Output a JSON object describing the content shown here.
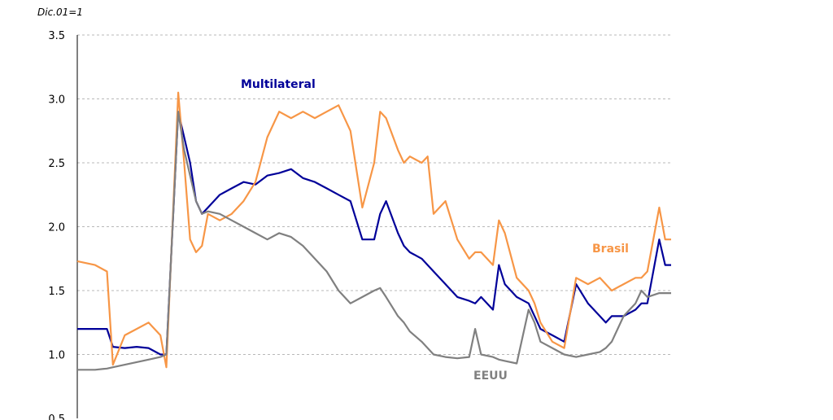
{
  "chart_data": {
    "type": "line",
    "unit_label": "Dic.01=1",
    "ylim": [
      0.5,
      3.5
    ],
    "yticks": [
      "3.5",
      "3.0",
      "2.5",
      "2.0",
      "1.5",
      "1.0",
      "0.5"
    ],
    "grid": true,
    "x_index_range": [
      0,
      100
    ],
    "x": [
      0,
      3,
      5,
      6,
      8,
      10,
      12,
      14,
      15,
      17,
      18,
      19,
      20,
      21,
      22,
      24,
      26,
      28,
      30,
      32,
      34,
      36,
      38,
      40,
      42,
      44,
      46,
      48,
      50,
      51,
      52,
      54,
      55,
      56,
      58,
      59,
      60,
      62,
      64,
      66,
      67,
      68,
      70,
      71,
      72,
      74,
      76,
      77,
      78,
      80,
      82,
      84,
      86,
      88,
      89,
      90,
      92,
      94,
      95,
      96,
      98,
      99,
      100
    ],
    "series": [
      {
        "name": "Multilateral",
        "color": "#000099",
        "values": [
          1.2,
          1.2,
          1.2,
          1.06,
          1.05,
          1.06,
          1.05,
          1.0,
          1.0,
          2.9,
          2.7,
          2.5,
          2.2,
          2.1,
          2.15,
          2.25,
          2.3,
          2.35,
          2.33,
          2.4,
          2.42,
          2.45,
          2.38,
          2.35,
          2.3,
          2.25,
          2.2,
          1.9,
          1.9,
          2.1,
          2.2,
          1.95,
          1.85,
          1.8,
          1.75,
          1.7,
          1.65,
          1.55,
          1.45,
          1.42,
          1.4,
          1.45,
          1.35,
          1.7,
          1.55,
          1.45,
          1.4,
          1.3,
          1.2,
          1.15,
          1.1,
          1.55,
          1.4,
          1.3,
          1.25,
          1.3,
          1.3,
          1.35,
          1.4,
          1.4,
          1.9,
          1.7,
          1.7
        ]
      },
      {
        "name": "Brasil",
        "color": "#F79646",
        "values": [
          1.73,
          1.7,
          1.65,
          0.92,
          1.15,
          1.2,
          1.25,
          1.15,
          0.9,
          3.05,
          2.5,
          1.9,
          1.8,
          1.85,
          2.1,
          2.05,
          2.1,
          2.2,
          2.35,
          2.7,
          2.9,
          2.85,
          2.9,
          2.85,
          2.9,
          2.95,
          2.75,
          2.15,
          2.5,
          2.9,
          2.85,
          2.6,
          2.5,
          2.55,
          2.5,
          2.55,
          2.1,
          2.2,
          1.9,
          1.75,
          1.8,
          1.8,
          1.7,
          2.05,
          1.95,
          1.6,
          1.5,
          1.4,
          1.25,
          1.1,
          1.05,
          1.6,
          1.55,
          1.6,
          1.55,
          1.5,
          1.55,
          1.6,
          1.6,
          1.65,
          2.15,
          1.9,
          1.9
        ]
      },
      {
        "name": "EEUU",
        "color": "#808080",
        "values": [
          0.88,
          0.88,
          0.89,
          0.9,
          0.92,
          0.94,
          0.96,
          0.98,
          1.0,
          2.9,
          2.6,
          2.4,
          2.2,
          2.1,
          2.12,
          2.1,
          2.05,
          2.0,
          1.95,
          1.9,
          1.95,
          1.92,
          1.85,
          1.75,
          1.65,
          1.5,
          1.4,
          1.45,
          1.5,
          1.52,
          1.45,
          1.3,
          1.25,
          1.18,
          1.1,
          1.05,
          1.0,
          0.98,
          0.97,
          0.98,
          1.2,
          1.0,
          0.98,
          0.96,
          0.95,
          0.93,
          1.35,
          1.25,
          1.1,
          1.05,
          1.0,
          0.98,
          1.0,
          1.02,
          1.05,
          1.1,
          1.3,
          1.4,
          1.5,
          1.45,
          1.48,
          1.48,
          1.48
        ]
      }
    ],
    "annotations": [
      {
        "text": "Multilateral",
        "series": "Multilateral"
      },
      {
        "text": "Brasil",
        "series": "Brasil"
      },
      {
        "text": "EEUU",
        "series": "EEUU"
      }
    ]
  }
}
